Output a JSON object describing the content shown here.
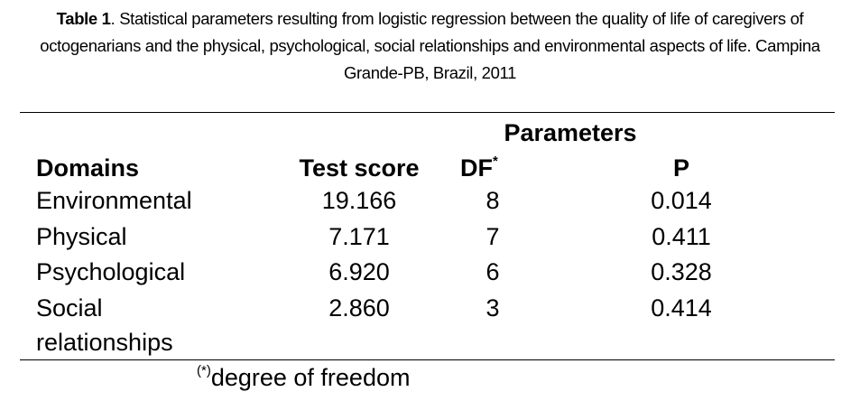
{
  "caption": {
    "label": "Table 1",
    "text": ". Statistical parameters resulting from logistic regression between the quality of life of caregivers of octogenarians and the physical, psychological, social relationships and environmental aspects of life. Campina Grande-PB, Brazil, 2011"
  },
  "table": {
    "group_header": "Parameters",
    "headers": [
      "Domains",
      "Test score",
      "DF",
      "P"
    ],
    "df_marker": "*",
    "rows": [
      [
        "Environmental",
        "19.166",
        "8",
        "0.014"
      ],
      [
        "Physical",
        "7.171",
        "7",
        "0.411"
      ],
      [
        "Psychological",
        "6.920",
        "6",
        "0.328"
      ],
      [
        "Social relationships",
        "2.860",
        "3",
        "0.414"
      ]
    ]
  },
  "footnote": {
    "marker": "(*)",
    "text": "degree of freedom"
  }
}
